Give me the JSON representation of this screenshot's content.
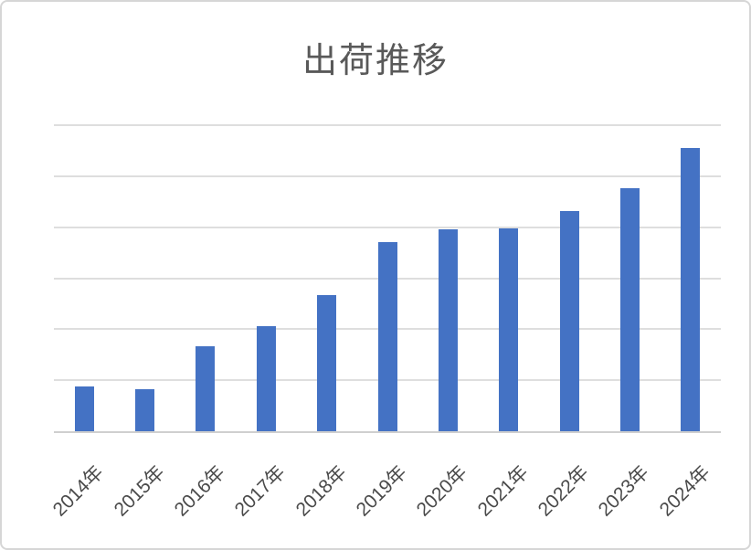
{
  "chart_data": {
    "type": "bar",
    "title": "出荷推移",
    "categories": [
      "2014年",
      "2015年",
      "2016年",
      "2017年",
      "2018年",
      "2019年",
      "2020年",
      "2021年",
      "2022年",
      "2023年",
      "2024年"
    ],
    "values": [
      0.87,
      0.82,
      1.67,
      2.06,
      2.66,
      3.7,
      3.96,
      3.97,
      4.31,
      4.76,
      5.56
    ],
    "xlabel": "",
    "ylabel": "",
    "ylim": [
      0,
      6
    ],
    "y_gridline_step": 1,
    "y_tick_labels_visible": false,
    "grid": "horizontal-only",
    "legend": "none",
    "bar_color": "#4472c4",
    "title_color": "#595959",
    "axis_label_color": "#4a4a4a",
    "gridline_color": "#dedede",
    "axis_line_color": "#cfcfcf",
    "note": "No value-axis labels are visible; values are expressed in gridline units (one gridline interval = 1 unit)."
  }
}
